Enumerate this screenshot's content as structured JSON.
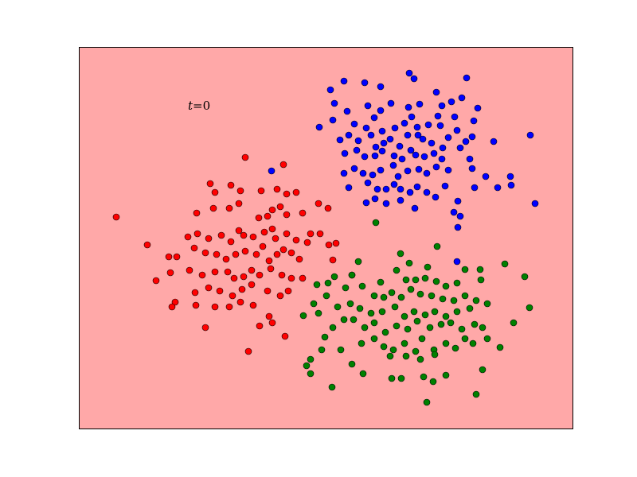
{
  "chart_data": {
    "type": "scatter",
    "title": "",
    "xlabel": "",
    "ylabel": "",
    "grid": false,
    "ticks": false,
    "legend": "none",
    "background_color": "#ffa8a8",
    "annotation": {
      "var": "t",
      "eq": "=0"
    },
    "series": [
      {
        "color": "#0000ff",
        "points": [
          [
            415,
            113
          ],
          [
            432,
            102
          ],
          [
            458,
            104
          ],
          [
            478,
            109
          ],
          [
            514,
            92
          ],
          [
            520,
            99
          ],
          [
            548,
            116
          ],
          [
            586,
            98
          ],
          [
            420,
            130
          ],
          [
            436,
            140
          ],
          [
            462,
            133
          ],
          [
            478,
            139
          ],
          [
            491,
            130
          ],
          [
            513,
            135
          ],
          [
            527,
            131
          ],
          [
            555,
            133
          ],
          [
            567,
            128
          ],
          [
            580,
            123
          ],
          [
            600,
            136
          ],
          [
            401,
            160
          ],
          [
            418,
            151
          ],
          [
            445,
            156
          ],
          [
            460,
            161
          ],
          [
            470,
            148
          ],
          [
            480,
            165
          ],
          [
            496,
            161
          ],
          [
            508,
            155
          ],
          [
            517,
            147
          ],
          [
            524,
            160
          ],
          [
            538,
            157
          ],
          [
            550,
            146
          ],
          [
            553,
            158
          ],
          [
            571,
            147
          ],
          [
            595,
            152
          ],
          [
            427,
            176
          ],
          [
            438,
            170
          ],
          [
            450,
            177
          ],
          [
            466,
            170
          ],
          [
            472,
            185
          ],
          [
            482,
            180
          ],
          [
            490,
            175
          ],
          [
            502,
            184
          ],
          [
            512,
            170
          ],
          [
            525,
            170
          ],
          [
            531,
            175
          ],
          [
            542,
            180
          ],
          [
            556,
            186
          ],
          [
            563,
            173
          ],
          [
            574,
            164
          ],
          [
            585,
            178
          ],
          [
            593,
            172
          ],
          [
            433,
            193
          ],
          [
            448,
            189
          ],
          [
            458,
            197
          ],
          [
            471,
            196
          ],
          [
            480,
            190
          ],
          [
            495,
            196
          ],
          [
            505,
            200
          ],
          [
            516,
            189
          ],
          [
            522,
            195
          ],
          [
            533,
            197
          ],
          [
            545,
            193
          ],
          [
            555,
            200
          ],
          [
            578,
            186
          ],
          [
            590,
            200
          ],
          [
            620,
            178
          ],
          [
            666,
            170
          ],
          [
            432,
            218
          ],
          [
            445,
            212
          ],
          [
            456,
            218
          ],
          [
            468,
            220
          ],
          [
            478,
            214
          ],
          [
            494,
            208
          ],
          [
            500,
            222
          ],
          [
            512,
            215
          ],
          [
            526,
            213
          ],
          [
            536,
            218
          ],
          [
            548,
            210
          ],
          [
            563,
            214
          ],
          [
            593,
            212
          ],
          [
            610,
            222
          ],
          [
            641,
            222
          ],
          [
            438,
            236
          ],
          [
            462,
            230
          ],
          [
            474,
            238
          ],
          [
            485,
            238
          ],
          [
            495,
            232
          ],
          [
            503,
            238
          ],
          [
            515,
            242
          ],
          [
            524,
            235
          ],
          [
            536,
            242
          ],
          [
            547,
            248
          ],
          [
            559,
            234
          ],
          [
            596,
            236
          ],
          [
            625,
            236
          ],
          [
            642,
            233
          ],
          [
            460,
            255
          ],
          [
            471,
            250
          ],
          [
            485,
            256
          ],
          [
            503,
            252
          ],
          [
            521,
            262
          ],
          [
            570,
            267
          ],
          [
            575,
            253
          ],
          [
            672,
            256
          ],
          [
            341,
            215
          ],
          [
            574,
            329
          ],
          [
            575,
            286
          ],
          [
            578,
            272
          ]
        ]
      },
      {
        "color": "#ff0000",
        "points": [
          [
            146,
            273
          ],
          [
            185,
            308
          ],
          [
            308,
            198
          ],
          [
            356,
            207
          ],
          [
            264,
            231
          ],
          [
            270,
            242
          ],
          [
            290,
            233
          ],
          [
            302,
            240
          ],
          [
            328,
            240
          ],
          [
            348,
            238
          ],
          [
            360,
            244
          ],
          [
            372,
            242
          ],
          [
            247,
            268
          ],
          [
            268,
            262
          ],
          [
            288,
            262
          ],
          [
            300,
            256
          ],
          [
            325,
            274
          ],
          [
            336,
            272
          ],
          [
            342,
            264
          ],
          [
            352,
            260
          ],
          [
            360,
            270
          ],
          [
            380,
            268
          ],
          [
            400,
            256
          ],
          [
            412,
            262
          ],
          [
            236,
            298
          ],
          [
            248,
            294
          ],
          [
            262,
            300
          ],
          [
            278,
            296
          ],
          [
            290,
            304
          ],
          [
            300,
            290
          ],
          [
            306,
            296
          ],
          [
            318,
            298
          ],
          [
            332,
            292
          ],
          [
            342,
            288
          ],
          [
            346,
            300
          ],
          [
            360,
            294
          ],
          [
            372,
            302
          ],
          [
            390,
            294
          ],
          [
            402,
            294
          ],
          [
            413,
            308
          ],
          [
            422,
            306
          ],
          [
            212,
            323
          ],
          [
            222,
            323
          ],
          [
            244,
            312
          ],
          [
            258,
            318
          ],
          [
            272,
            320
          ],
          [
            284,
            326
          ],
          [
            296,
            320
          ],
          [
            308,
            316
          ],
          [
            322,
            320
          ],
          [
            330,
            310
          ],
          [
            338,
            328
          ],
          [
            348,
            320
          ],
          [
            356,
            314
          ],
          [
            366,
            318
          ],
          [
            376,
            326
          ],
          [
            214,
            343
          ],
          [
            238,
            340
          ],
          [
            254,
            346
          ],
          [
            270,
            342
          ],
          [
            286,
            342
          ],
          [
            294,
            350
          ],
          [
            306,
            348
          ],
          [
            316,
            340
          ],
          [
            326,
            346
          ],
          [
            340,
            338
          ],
          [
            354,
            346
          ],
          [
            366,
            350
          ],
          [
            380,
            350
          ],
          [
            196,
            353
          ],
          [
            245,
            368
          ],
          [
            262,
            362
          ],
          [
            276,
            366
          ],
          [
            292,
            372
          ],
          [
            304,
            364
          ],
          [
            316,
            358
          ],
          [
            336,
            366
          ],
          [
            352,
            372
          ],
          [
            362,
            366
          ],
          [
            220,
            380
          ],
          [
            246,
            384
          ],
          [
            270,
            386
          ],
          [
            288,
            386
          ],
          [
            302,
            380
          ],
          [
            318,
            384
          ],
          [
            338,
            398
          ],
          [
            342,
            406
          ],
          [
            258,
            412
          ],
          [
            326,
            410
          ],
          [
            358,
            423
          ],
          [
            312,
            442
          ],
          [
            442,
            346
          ],
          [
            418,
            327
          ],
          [
            386,
            305
          ],
          [
            216,
            386
          ]
        ]
      },
      {
        "color": "#008000",
        "points": [
          [
            472,
            280
          ],
          [
            549,
            310
          ],
          [
            503,
            319
          ],
          [
            450,
            329
          ],
          [
            514,
            331
          ],
          [
            537,
            336
          ],
          [
            584,
            339
          ],
          [
            603,
            339
          ],
          [
            634,
            332
          ],
          [
            420,
            348
          ],
          [
            442,
            346
          ],
          [
            478,
            355
          ],
          [
            498,
            340
          ],
          [
            510,
            352
          ],
          [
            522,
            352
          ],
          [
            534,
            350
          ],
          [
            548,
            354
          ],
          [
            560,
            360
          ],
          [
            574,
            356
          ],
          [
            604,
            352
          ],
          [
            659,
            348
          ],
          [
            398,
            358
          ],
          [
            412,
            356
          ],
          [
            434,
            362
          ],
          [
            455,
            360
          ],
          [
            470,
            372
          ],
          [
            482,
            374
          ],
          [
            492,
            368
          ],
          [
            504,
            374
          ],
          [
            516,
            364
          ],
          [
            528,
            370
          ],
          [
            542,
            372
          ],
          [
            556,
            376
          ],
          [
            570,
            378
          ],
          [
            584,
            372
          ],
          [
            598,
            378
          ],
          [
            612,
            382
          ],
          [
            394,
            382
          ],
          [
            410,
            372
          ],
          [
            424,
            386
          ],
          [
            440,
            382
          ],
          [
            452,
            388
          ],
          [
            466,
            394
          ],
          [
            480,
            392
          ],
          [
            496,
            386
          ],
          [
            508,
            398
          ],
          [
            520,
            392
          ],
          [
            534,
            396
          ],
          [
            546,
            392
          ],
          [
            560,
            398
          ],
          [
            574,
            392
          ],
          [
            590,
            388
          ],
          [
            400,
            394
          ],
          [
            418,
            412
          ],
          [
            432,
            402
          ],
          [
            444,
            402
          ],
          [
            458,
            412
          ],
          [
            470,
            406
          ],
          [
            484,
            418
          ],
          [
            498,
            410
          ],
          [
            512,
            414
          ],
          [
            524,
            404
          ],
          [
            540,
            412
          ],
          [
            554,
            408
          ],
          [
            566,
            406
          ],
          [
            580,
            414
          ],
          [
            596,
            408
          ],
          [
            606,
            412
          ],
          [
            645,
            406
          ],
          [
            665,
            387
          ],
          [
            408,
            424
          ],
          [
            428,
            440
          ],
          [
            454,
            432
          ],
          [
            470,
            426
          ],
          [
            482,
            436
          ],
          [
            494,
            440
          ],
          [
            508,
            432
          ],
          [
            522,
            442
          ],
          [
            530,
            426
          ],
          [
            545,
            440
          ],
          [
            560,
            432
          ],
          [
            572,
            438
          ],
          [
            584,
            426
          ],
          [
            594,
            432
          ],
          [
            612,
            426
          ],
          [
            628,
            437
          ],
          [
            385,
            460
          ],
          [
            390,
            452
          ],
          [
            404,
            440
          ],
          [
            442,
            458
          ],
          [
            456,
            470
          ],
          [
            490,
            448
          ],
          [
            510,
            448
          ],
          [
            528,
            452
          ],
          [
            546,
            446
          ],
          [
            560,
            472
          ],
          [
            606,
            465
          ],
          [
            390,
            470
          ],
          [
            417,
            487
          ],
          [
            492,
            476
          ],
          [
            504,
            476
          ],
          [
            532,
            474
          ],
          [
            544,
            480
          ],
          [
            536,
            506
          ],
          [
            598,
            496
          ],
          [
            381,
            397
          ]
        ]
      }
    ]
  }
}
